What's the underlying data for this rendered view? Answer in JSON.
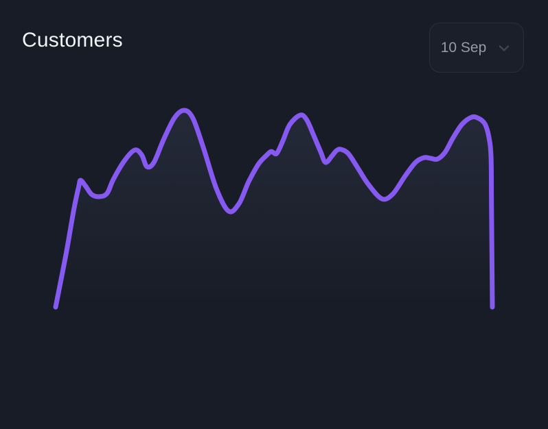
{
  "card": {
    "title": "Customers",
    "background_color": "#181c26",
    "title_color": "#f2f4f7"
  },
  "period_selector": {
    "label": "10 Sep",
    "icon": "chevron-down",
    "text_color": "#969ca6",
    "border_color": "#2a2f3c",
    "chevron_color": "#3e4654"
  },
  "chart_data": {
    "type": "area",
    "title": "Customers",
    "xlabel": "",
    "ylabel": "",
    "x_axis_visible": false,
    "y_axis_visible": false,
    "grid": false,
    "legend": false,
    "value_scale": "normalized 0-100; chart shows no axis ticks or labels",
    "line_color": "#8659f0",
    "line_width": 7,
    "fill_top_color": "rgba(166,182,255,0.09)",
    "fill_bottom_color": "rgba(166,182,255,0)",
    "series": [
      {
        "name": "Customers",
        "points": [
          [
            0.0,
            0.3
          ],
          [
            2.4,
            27.2
          ],
          [
            4.2,
            49.7
          ],
          [
            5.3,
            61.0
          ],
          [
            5.7,
            64.1
          ],
          [
            6.8,
            61.4
          ],
          [
            8.3,
            56.9
          ],
          [
            10.1,
            55.9
          ],
          [
            11.8,
            57.6
          ],
          [
            13.2,
            64.5
          ],
          [
            15.7,
            73.8
          ],
          [
            18.1,
            79.3
          ],
          [
            19.7,
            76.9
          ],
          [
            20.9,
            71.0
          ],
          [
            22.5,
            73.1
          ],
          [
            24.7,
            84.5
          ],
          [
            27.2,
            95.5
          ],
          [
            29.4,
            99.3
          ],
          [
            31.4,
            95.5
          ],
          [
            33.8,
            80.7
          ],
          [
            36.8,
            60.0
          ],
          [
            39.6,
            48.6
          ],
          [
            42.0,
            52.4
          ],
          [
            44.2,
            63.4
          ],
          [
            46.5,
            72.4
          ],
          [
            48.4,
            76.9
          ],
          [
            49.4,
            78.6
          ],
          [
            50.6,
            77.6
          ],
          [
            52.0,
            83.8
          ],
          [
            53.6,
            92.1
          ],
          [
            56.0,
            96.9
          ],
          [
            57.5,
            94.5
          ],
          [
            59.1,
            86.6
          ],
          [
            60.7,
            78.3
          ],
          [
            61.8,
            73.1
          ],
          [
            63.2,
            76.2
          ],
          [
            64.3,
            79.0
          ],
          [
            65.3,
            79.7
          ],
          [
            67.0,
            77.6
          ],
          [
            69.0,
            71.0
          ],
          [
            71.5,
            62.4
          ],
          [
            74.7,
            54.8
          ],
          [
            77.2,
            57.2
          ],
          [
            80.0,
            66.2
          ],
          [
            82.4,
            73.1
          ],
          [
            84.3,
            75.5
          ],
          [
            85.8,
            75.2
          ],
          [
            87.4,
            74.8
          ],
          [
            89.2,
            78.3
          ],
          [
            91.0,
            85.5
          ],
          [
            93.1,
            92.4
          ],
          [
            95.3,
            95.9
          ],
          [
            96.9,
            95.2
          ],
          [
            98.3,
            92.4
          ],
          [
            99.2,
            85.9
          ],
          [
            99.7,
            75.5
          ],
          [
            99.8,
            51.4
          ],
          [
            100.0,
            0.3
          ]
        ]
      }
    ]
  }
}
